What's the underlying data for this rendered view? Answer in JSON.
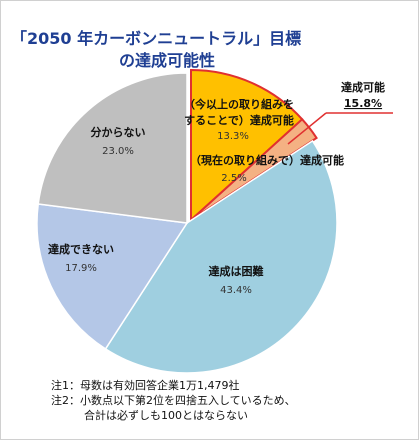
{
  "chart_data": {
    "type": "pie",
    "title": [
      "「2050 年カーボンニュートラル」目標",
      "の達成可能性"
    ],
    "series": [
      {
        "label_lines": [
          "（今以上の取り組みを",
          "することで）達成可能"
        ],
        "value_text": "13.3%",
        "value": 13.3,
        "color": "#ffc000"
      },
      {
        "label_lines": [
          "（現在の取り組みで）達成可能"
        ],
        "value_text": "2.5%",
        "value": 2.5,
        "color": "#f4b183"
      },
      {
        "label_lines": [
          "達成は困難"
        ],
        "value_text": "43.4%",
        "value": 43.4,
        "color": "#9fcfe0"
      },
      {
        "label_lines": [
          "達成できない"
        ],
        "value_text": "17.9%",
        "value": 17.9,
        "color": "#b4c7e7"
      },
      {
        "label_lines": [
          "分からない"
        ],
        "value_text": "23.0%",
        "value": 23.0,
        "color": "#bfbfbf"
      }
    ],
    "total_label": "達成可能",
    "total_value_text": "15.8%",
    "total_value": 15.8,
    "highlight_color": "#e03030"
  },
  "notes": [
    "注1：母数は有効回答企業1万1,479社",
    "注2：小数点以下第2位を四捨五入しているため、",
    "　　　合計は必ずしも100とはならない"
  ]
}
